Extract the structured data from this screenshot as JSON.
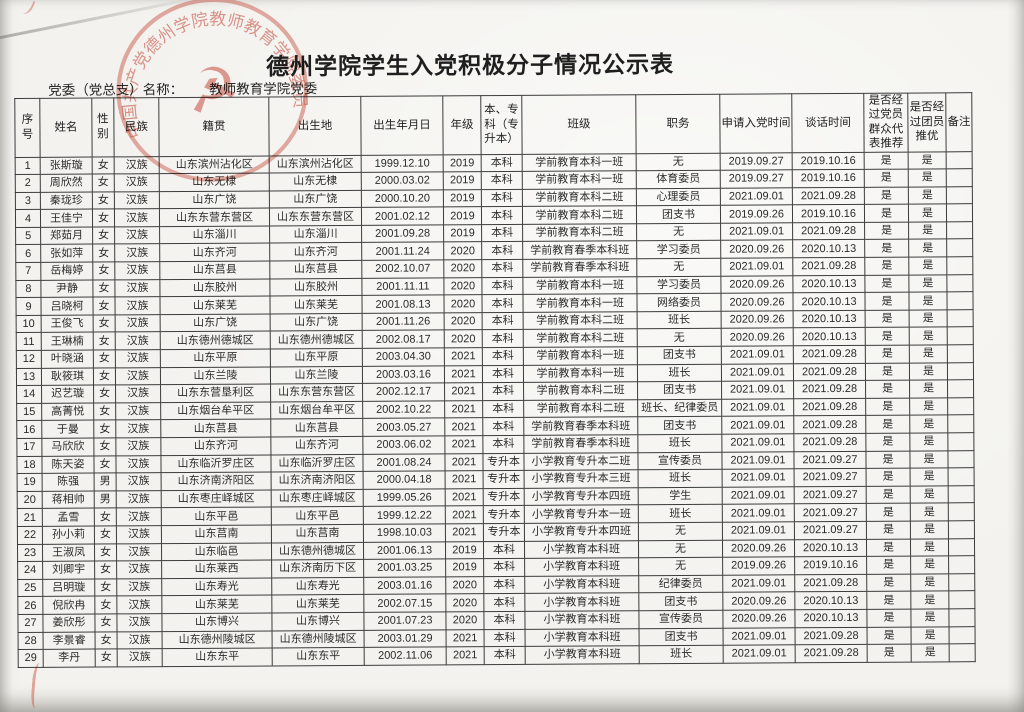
{
  "page": {
    "title": "德州学院学生入党积极分子情况公示表",
    "org_label": "党委（党总支）名称：",
    "org_name": "教师教育学院党委",
    "stamp": {
      "ring_text": "中国共产党德州学院教师教育学院委员会",
      "symbol_glyph": "☭",
      "color": "#c2452f"
    }
  },
  "table": {
    "headers": [
      "序号",
      "姓名",
      "性别",
      "民族",
      "籍贯",
      "出生地",
      "出生年月日",
      "年级",
      "本、专科（专升本）",
      "班级",
      "职务",
      "申请入党时间",
      "谈话时间",
      "是否经过党员群众代表推荐",
      "是否经过团员推优",
      "备注"
    ],
    "rows": [
      [
        "1",
        "张斯璇",
        "女",
        "汉族",
        "山东滨州沾化区",
        "山东滨州沾化区",
        "1999.12.10",
        "2019",
        "本科",
        "学前教育本科一班",
        "无",
        "2019.09.27",
        "2019.10.16",
        "是",
        "是",
        ""
      ],
      [
        "2",
        "周欣然",
        "女",
        "汉族",
        "山东无棣",
        "山东无棣",
        "2000.03.02",
        "2019",
        "本科",
        "学前教育本科一班",
        "体育委员",
        "2019.09.27",
        "2019.10.16",
        "是",
        "是",
        ""
      ],
      [
        "3",
        "秦珑珍",
        "女",
        "汉族",
        "山东广饶",
        "山东广饶",
        "2000.10.20",
        "2019",
        "本科",
        "学前教育本科二班",
        "心理委员",
        "2021.09.01",
        "2021.09.28",
        "是",
        "是",
        ""
      ],
      [
        "4",
        "王佳宁",
        "女",
        "汉族",
        "山东东营东营区",
        "山东东营东营区",
        "2001.02.12",
        "2019",
        "本科",
        "学前教育本科二班",
        "团支书",
        "2019.09.26",
        "2019.10.16",
        "是",
        "是",
        ""
      ],
      [
        "5",
        "郑茹月",
        "女",
        "汉族",
        "山东淄川",
        "山东淄川",
        "2001.09.28",
        "2019",
        "本科",
        "学前教育本科二班",
        "无",
        "2021.09.01",
        "2021.09.28",
        "是",
        "是",
        ""
      ],
      [
        "6",
        "张如萍",
        "女",
        "汉族",
        "山东齐河",
        "山东齐河",
        "2001.11.24",
        "2020",
        "本科",
        "学前教育春季本科班",
        "学习委员",
        "2020.09.26",
        "2020.10.13",
        "是",
        "是",
        ""
      ],
      [
        "7",
        "岳梅婷",
        "女",
        "汉族",
        "山东莒县",
        "山东莒县",
        "2002.10.07",
        "2020",
        "本科",
        "学前教育春季本科班",
        "无",
        "2021.09.01",
        "2021.09.28",
        "是",
        "是",
        ""
      ],
      [
        "8",
        "尹静",
        "女",
        "汉族",
        "山东胶州",
        "山东胶州",
        "2001.11.11",
        "2020",
        "本科",
        "学前教育本科一班",
        "学习委员",
        "2020.09.26",
        "2020.10.13",
        "是",
        "是",
        ""
      ],
      [
        "9",
        "吕晓柯",
        "女",
        "汉族",
        "山东莱芜",
        "山东莱芜",
        "2001.08.13",
        "2020",
        "本科",
        "学前教育本科一班",
        "网络委员",
        "2020.09.26",
        "2020.10.13",
        "是",
        "是",
        ""
      ],
      [
        "10",
        "王俊飞",
        "女",
        "汉族",
        "山东广饶",
        "山东广饶",
        "2001.11.26",
        "2020",
        "本科",
        "学前教育本科二班",
        "班长",
        "2020.09.26",
        "2020.10.13",
        "是",
        "是",
        ""
      ],
      [
        "11",
        "王琳楠",
        "女",
        "汉族",
        "山东德州德城区",
        "山东德州德城区",
        "2002.08.17",
        "2020",
        "本科",
        "学前教育本科二班",
        "无",
        "2020.09.26",
        "2020.10.13",
        "是",
        "是",
        ""
      ],
      [
        "12",
        "叶晓涵",
        "女",
        "汉族",
        "山东平原",
        "山东平原",
        "2003.04.30",
        "2021",
        "本科",
        "学前教育本科一班",
        "团支书",
        "2021.09.01",
        "2021.09.28",
        "是",
        "是",
        ""
      ],
      [
        "13",
        "耿筱琪",
        "女",
        "汉族",
        "山东兰陵",
        "山东兰陵",
        "2003.03.16",
        "2021",
        "本科",
        "学前教育本科一班",
        "班长",
        "2021.09.01",
        "2021.09.28",
        "是",
        "是",
        ""
      ],
      [
        "14",
        "迟艺璇",
        "女",
        "汉族",
        "山东东营垦利区",
        "山东东营东营区",
        "2002.12.17",
        "2021",
        "本科",
        "学前教育本科二班",
        "团支书",
        "2021.09.01",
        "2021.09.28",
        "是",
        "是",
        ""
      ],
      [
        "15",
        "高菁悦",
        "女",
        "汉族",
        "山东烟台牟平区",
        "山东烟台牟平区",
        "2002.10.22",
        "2021",
        "本科",
        "学前教育本科二班",
        "班长、纪律委员",
        "2021.09.01",
        "2021.09.28",
        "是",
        "是",
        ""
      ],
      [
        "16",
        "于曼",
        "女",
        "汉族",
        "山东莒县",
        "山东莒县",
        "2003.05.27",
        "2021",
        "本科",
        "学前教育春季本科班",
        "团支书",
        "2021.09.01",
        "2021.09.28",
        "是",
        "是",
        ""
      ],
      [
        "17",
        "马欣欣",
        "女",
        "汉族",
        "山东齐河",
        "山东齐河",
        "2003.06.02",
        "2021",
        "本科",
        "学前教育春季本科班",
        "班长",
        "2021.09.01",
        "2021.09.28",
        "是",
        "是",
        ""
      ],
      [
        "18",
        "陈天姿",
        "女",
        "汉族",
        "山东临沂罗庄区",
        "山东临沂罗庄区",
        "2001.08.24",
        "2021",
        "专升本",
        "小学教育专升本二班",
        "宣传委员",
        "2021.09.01",
        "2021.09.27",
        "是",
        "是",
        ""
      ],
      [
        "19",
        "陈强",
        "男",
        "汉族",
        "山东济南济阳区",
        "山东济南济阳区",
        "2000.04.18",
        "2021",
        "专升本",
        "小学教育专升本三班",
        "班长",
        "2021.09.01",
        "2021.09.27",
        "是",
        "是",
        ""
      ],
      [
        "20",
        "蒋相帅",
        "男",
        "汉族",
        "山东枣庄峄城区",
        "山东枣庄峄城区",
        "1999.05.26",
        "2021",
        "专升本",
        "小学教育专升本四班",
        "学生",
        "2021.09.01",
        "2021.09.27",
        "是",
        "是",
        ""
      ],
      [
        "21",
        "孟雪",
        "女",
        "汉族",
        "山东平邑",
        "山东平邑",
        "1999.12.22",
        "2021",
        "专升本",
        "小学教育专升本一班",
        "班长",
        "2021.09.01",
        "2021.09.27",
        "是",
        "是",
        ""
      ],
      [
        "22",
        "孙小莉",
        "女",
        "汉族",
        "山东莒南",
        "山东莒南",
        "1998.10.03",
        "2021",
        "专升本",
        "小学教育专升本四班",
        "无",
        "2021.09.01",
        "2021.09.27",
        "是",
        "是",
        ""
      ],
      [
        "23",
        "王淑凤",
        "女",
        "汉族",
        "山东临邑",
        "山东德州德城区",
        "2001.06.13",
        "2019",
        "本科",
        "小学教育本科班",
        "无",
        "2020.09.26",
        "2020.10.13",
        "是",
        "是",
        ""
      ],
      [
        "24",
        "刘卿宇",
        "女",
        "汉族",
        "山东莱西",
        "山东济南历下区",
        "2001.03.25",
        "2019",
        "本科",
        "小学教育本科班",
        "无",
        "2019.09.26",
        "2019.10.16",
        "是",
        "是",
        ""
      ],
      [
        "25",
        "吕明璇",
        "女",
        "汉族",
        "山东寿光",
        "山东寿光",
        "2003.01.16",
        "2020",
        "本科",
        "小学教育本科班",
        "纪律委员",
        "2021.09.01",
        "2021.09.28",
        "是",
        "是",
        ""
      ],
      [
        "26",
        "倪欣冉",
        "女",
        "汉族",
        "山东莱芜",
        "山东莱芜",
        "2002.07.15",
        "2020",
        "本科",
        "小学教育本科班",
        "团支书",
        "2020.09.26",
        "2020.10.13",
        "是",
        "是",
        ""
      ],
      [
        "27",
        "姜欣彤",
        "女",
        "汉族",
        "山东博兴",
        "山东博兴",
        "2001.07.23",
        "2020",
        "本科",
        "小学教育本科班",
        "宣传委员",
        "2020.09.26",
        "2020.10.13",
        "是",
        "是",
        ""
      ],
      [
        "28",
        "李景睿",
        "女",
        "汉族",
        "山东德州陵城区",
        "山东德州陵城区",
        "2003.01.29",
        "2021",
        "本科",
        "小学教育本科班",
        "团支书",
        "2021.09.01",
        "2021.09.28",
        "是",
        "是",
        ""
      ],
      [
        "29",
        "李丹",
        "女",
        "汉族",
        "山东东平",
        "山东东平",
        "2002.11.06",
        "2021",
        "本科",
        "小学教育本科班",
        "班长",
        "2021.09.01",
        "2021.09.28",
        "是",
        "是",
        ""
      ]
    ]
  }
}
